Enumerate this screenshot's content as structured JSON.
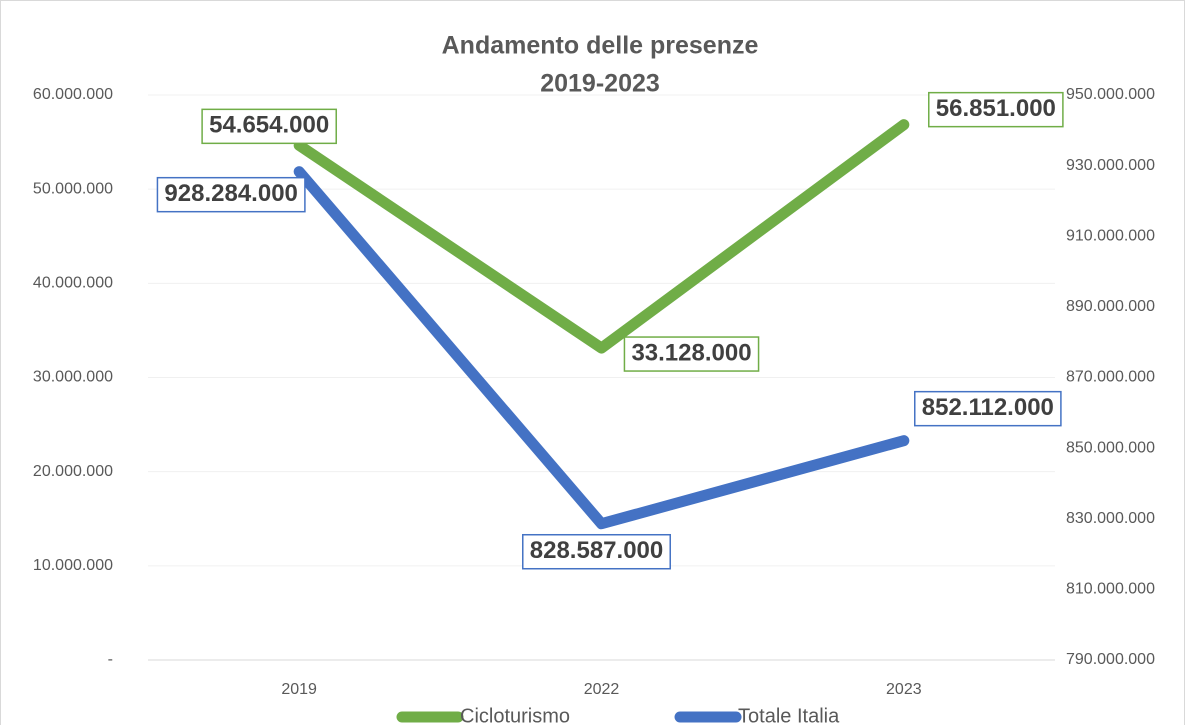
{
  "chart_data": {
    "type": "line",
    "title": [
      "Andamento delle presenze",
      "2019-2023"
    ],
    "categories": [
      "2019",
      "2022",
      "2023"
    ],
    "series": [
      {
        "name": "Cicloturismo",
        "color": "#70ad47",
        "values": [
          54654000,
          33128000,
          56851000
        ],
        "value_labels": [
          "54.654.000",
          "33.128.000",
          "56.851.000"
        ]
      },
      {
        "name": "Totale Italia",
        "color": "#4472c4",
        "axis": "y2",
        "values": [
          928284000,
          828587000,
          852112000
        ],
        "value_labels": [
          "928.284.000",
          "828.587.000",
          "852.112.000"
        ]
      }
    ],
    "ylim": [
      0,
      60000000
    ],
    "yticks": [
      {
        "value": 0,
        "label": "-"
      },
      {
        "value": 10000000,
        "label": "10.000.000"
      },
      {
        "value": 20000000,
        "label": "20.000.000"
      },
      {
        "value": 30000000,
        "label": "30.000.000"
      },
      {
        "value": 40000000,
        "label": "40.000.000"
      },
      {
        "value": 50000000,
        "label": "50.000.000"
      },
      {
        "value": 60000000,
        "label": "60.000.000"
      }
    ],
    "y2lim": [
      790000000,
      950000000
    ],
    "y2ticks": [
      {
        "value": 790000000,
        "label": "790.000.000"
      },
      {
        "value": 810000000,
        "label": "810.000.000"
      },
      {
        "value": 830000000,
        "label": "830.000.000"
      },
      {
        "value": 850000000,
        "label": "850.000.000"
      },
      {
        "value": 870000000,
        "label": "870.000.000"
      },
      {
        "value": 890000000,
        "label": "890.000.000"
      },
      {
        "value": 910000000,
        "label": "910.000.000"
      },
      {
        "value": 930000000,
        "label": "930.000.000"
      },
      {
        "value": 950000000,
        "label": "950.000.000"
      }
    ],
    "grid": true,
    "legend": "bottom"
  }
}
